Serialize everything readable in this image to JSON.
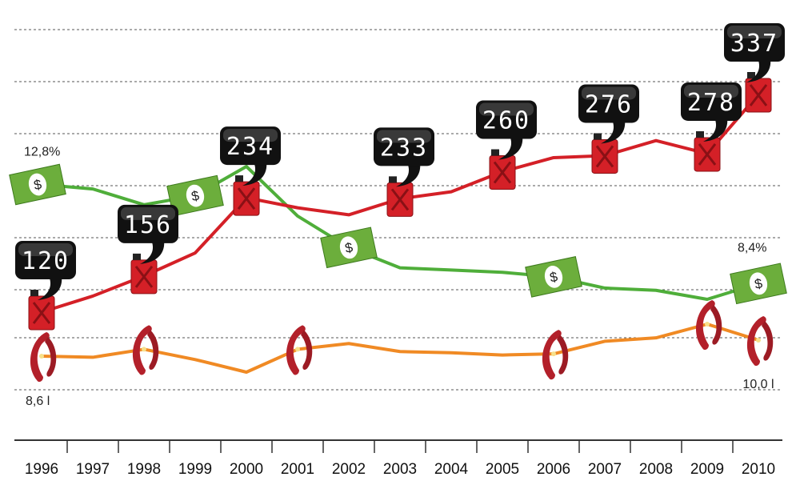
{
  "chart_data": {
    "type": "line",
    "categories": [
      "1996",
      "1997",
      "1998",
      "1999",
      "2000",
      "2001",
      "2002",
      "2003",
      "2004",
      "2005",
      "2006",
      "2007",
      "2008",
      "2009",
      "2010"
    ],
    "series": [
      {
        "color": "#d42027",
        "values": [
          120,
          136,
          156,
          179,
          234,
          224,
          217,
          233,
          240,
          260,
          274,
          276,
          291,
          278,
          337
        ],
        "value_labels": [
          "120",
          null,
          "156",
          null,
          "234",
          null,
          null,
          "233",
          null,
          "260",
          null,
          "276",
          null,
          "278",
          "337"
        ]
      },
      {
        "color": "#4fae3a",
        "values": [
          12.8,
          12.6,
          11.9,
          12.3,
          13.6,
          11.4,
          10.0,
          9.1,
          9.0,
          8.9,
          8.7,
          8.2,
          8.1,
          7.7,
          8.4
        ],
        "value_labels": [
          "12,8%",
          null,
          null,
          null,
          null,
          null,
          null,
          null,
          null,
          null,
          null,
          null,
          null,
          null,
          "8,4%"
        ]
      },
      {
        "color": "#f08a24",
        "values": [
          8.6,
          8.5,
          9.2,
          8.3,
          7.2,
          9.2,
          9.7,
          9.0,
          8.9,
          8.7,
          8.8,
          9.9,
          10.2,
          11.4,
          10.0
        ],
        "value_labels": [
          "8,6 l",
          null,
          null,
          null,
          null,
          null,
          null,
          null,
          null,
          null,
          null,
          null,
          null,
          null,
          "10,0 l"
        ]
      }
    ]
  }
}
